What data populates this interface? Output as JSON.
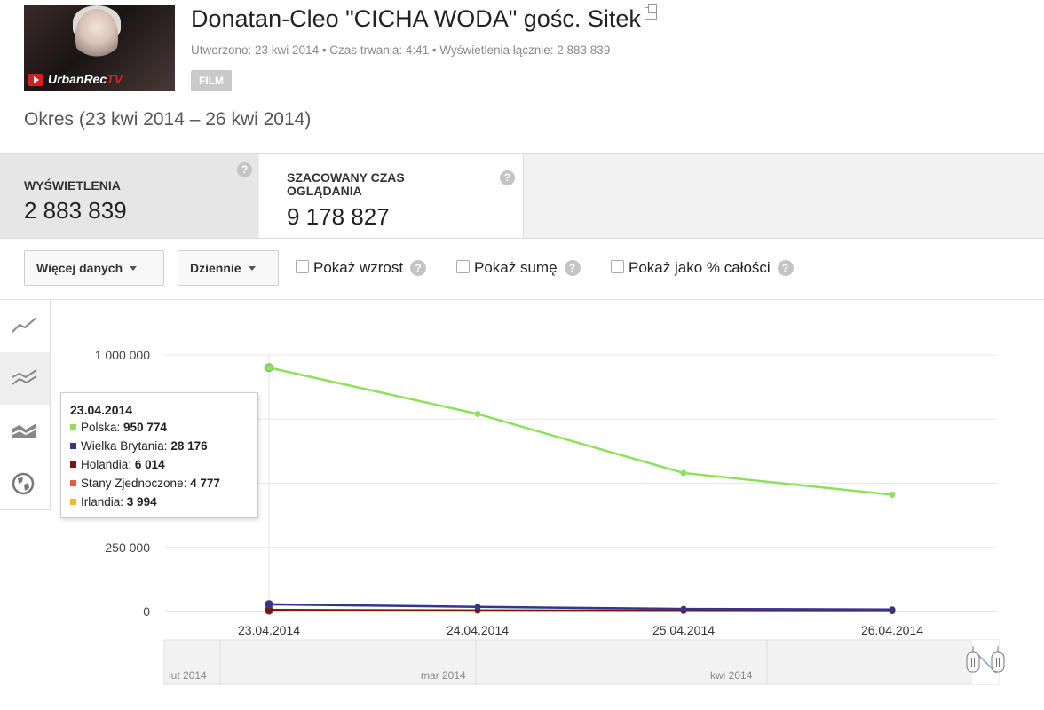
{
  "video": {
    "title": "Donatan-Cleo \"CICHA WODA\" gośc. Sitek",
    "thumbnail_brand": "UrbanRec",
    "thumbnail_brand_suffix": "TV",
    "meta": "Utworzono: 23 kwi 2014  •  Czas trwania: 4:41  •  Wyświetlenia łącznie: 2 883 839",
    "badge": "FILM"
  },
  "period": "Okres (23 kwi 2014 – 26 kwi 2014)",
  "metrics": [
    {
      "label": "WYŚWIETLENIA",
      "value": "2 883 839"
    },
    {
      "label_line1": "SZACOWANY CZAS",
      "label_line2": "OGLĄDANIA",
      "value": "9 178 827"
    }
  ],
  "help_glyph": "?",
  "toolbar": {
    "more_data": "Więcej danych",
    "interval": "Dziennie",
    "show_growth": "Pokaż wzrost",
    "show_sum": "Pokaż sumę",
    "show_percent": "Pokaż jako % całości"
  },
  "sidebar": {
    "items": [
      {
        "icon": "line-chart-icon"
      },
      {
        "icon": "multi-line-chart-icon",
        "active": true
      },
      {
        "icon": "stacked-area-icon"
      },
      {
        "icon": "globe-icon"
      }
    ]
  },
  "chart_data": {
    "type": "line",
    "x": [
      "23.04.2014",
      "24.04.2014",
      "25.04.2014",
      "26.04.2014"
    ],
    "ylim": [
      0,
      1000000
    ],
    "yticks": [
      {
        "value": 0,
        "label": "0"
      },
      {
        "value": 250000,
        "label": "250 000"
      },
      {
        "value": 1000000,
        "label": "1 000 000"
      }
    ],
    "grid": true,
    "series": [
      {
        "name": "Polska",
        "color": "#8ee05a",
        "values": [
          950774,
          770000,
          540000,
          455000
        ]
      },
      {
        "name": "Wielka Brytania",
        "color": "#343591",
        "values": [
          28176,
          18000,
          10000,
          8000
        ]
      },
      {
        "name": "Holandia",
        "color": "#7b1313",
        "values": [
          6014,
          4000,
          3000,
          2500
        ]
      },
      {
        "name": "Stany Zjednoczone",
        "color": "#e05f3e",
        "values": [
          4777,
          3500,
          2500,
          2000
        ]
      },
      {
        "name": "Irlandia",
        "color": "#f5b62a",
        "values": [
          3994,
          3000,
          2200,
          1800
        ]
      }
    ]
  },
  "tooltip": {
    "date": "23.04.2014",
    "rows": [
      {
        "label": "Polska:",
        "value": "950 774",
        "color": "#8ee05a"
      },
      {
        "label": "Wielka Brytania:",
        "value": "28 176",
        "color": "#343591"
      },
      {
        "label": "Holandia:",
        "value": "6 014",
        "color": "#7b1313"
      },
      {
        "label": "Stany Zjednoczone:",
        "value": "4 777",
        "color": "#e05f3e"
      },
      {
        "label": "Irlandia:",
        "value": "3 994",
        "color": "#f5b62a"
      }
    ]
  },
  "navigator": {
    "labels": [
      "lut 2014",
      "mar 2014",
      "kwi 2014"
    ]
  }
}
